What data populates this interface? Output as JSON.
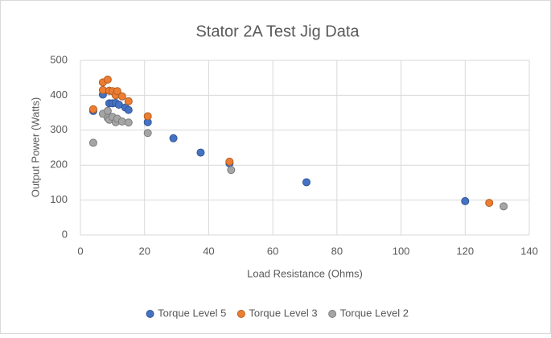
{
  "chart_data": {
    "type": "scatter",
    "title": "Stator 2A Test Jig Data",
    "xlabel": "Load Resistance (Ohms)",
    "ylabel": "Output Power (Watts)",
    "xlim": [
      0,
      140
    ],
    "xticks": [
      0,
      20,
      40,
      60,
      80,
      100,
      120,
      140
    ],
    "ylim": [
      0,
      500
    ],
    "yticks": [
      0,
      100,
      200,
      300,
      400,
      500
    ],
    "grid": true,
    "legend": "bottom",
    "series": [
      {
        "name": "Torque Level 5",
        "color": "#4472c4",
        "x": [
          4,
          7,
          9,
          9,
          10,
          11,
          12,
          14,
          15,
          21,
          29,
          37.5,
          46.5,
          70.5,
          120
        ],
        "values": [
          355,
          402,
          413,
          377,
          377,
          378,
          373,
          365,
          358,
          323,
          277,
          236,
          205,
          151,
          97
        ]
      },
      {
        "name": "Torque Level 3",
        "color": "#ed7d31",
        "x": [
          4,
          7,
          7,
          8.5,
          9,
          10,
          11,
          11.5,
          13,
          15,
          21,
          46.5,
          127.5
        ],
        "values": [
          360,
          437,
          415,
          445,
          413,
          412,
          400,
          412,
          397,
          383,
          340,
          210,
          92
        ]
      },
      {
        "name": "Torque Level 2",
        "color": "#a5a5a5",
        "x": [
          4,
          7,
          8.5,
          8.5,
          9,
          10,
          11,
          11.5,
          13,
          15,
          21,
          47,
          132
        ],
        "values": [
          264,
          347,
          355,
          335,
          330,
          338,
          323,
          333,
          325,
          322,
          292,
          186,
          82
        ]
      }
    ]
  }
}
